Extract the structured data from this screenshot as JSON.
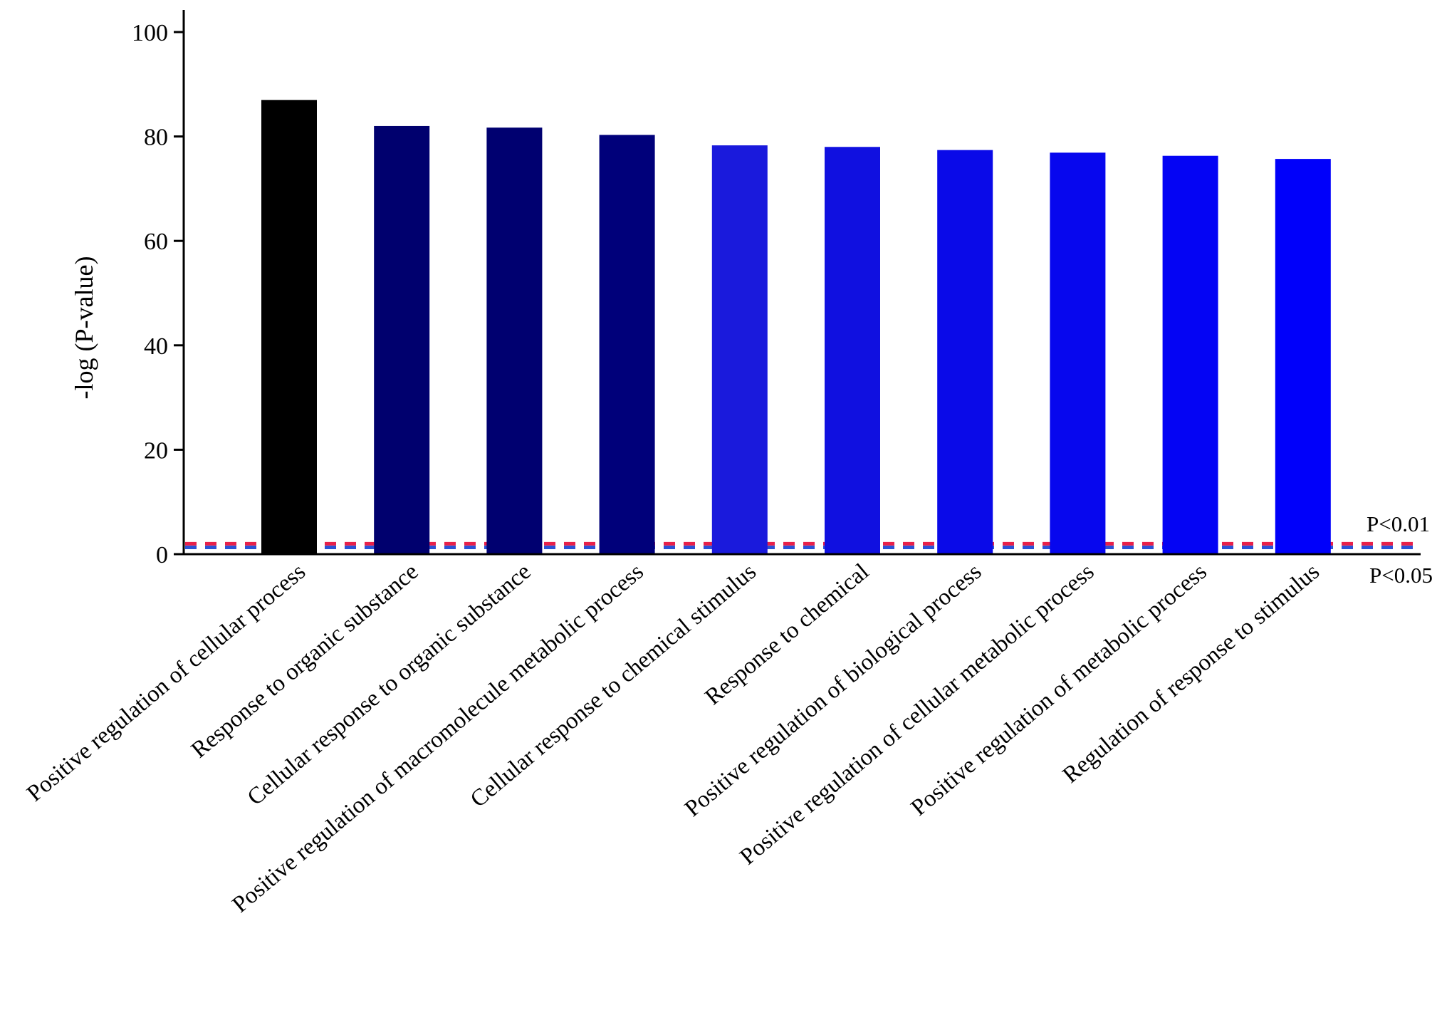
{
  "chart_data": {
    "type": "bar",
    "title": "",
    "xlabel": "",
    "ylabel": "-log (P-value)",
    "ylim": [
      0,
      100
    ],
    "yticks": [
      0,
      20,
      40,
      60,
      80,
      100
    ],
    "grid": false,
    "categories": [
      "Positive regulation of cellular process",
      "Response to organic substance",
      "Cellular response to organic substance",
      "Positive regulation of macromolecule metabolic  process",
      "Cellular response to chemical stimulus",
      "Response to chemical",
      "Positive regulation of biological process",
      "Positive regulation of cellular metabolic  process",
      "Positive regulation of metabolic process",
      "Regulation of response to stimulus"
    ],
    "values": [
      87,
      82,
      81.7,
      80.3,
      78.3,
      78,
      77.4,
      76.9,
      76.3,
      75.7
    ],
    "bar_colors": [
      "#000000",
      "#00006e",
      "#000070",
      "#00007a",
      "#1a1adc",
      "#1010e0",
      "#0a0ae8",
      "#0707ee",
      "#0404f4",
      "#0000fa"
    ],
    "thresholds": [
      {
        "label": "P<0.01",
        "value": 2,
        "color": "#e8204a"
      },
      {
        "label": "P<0.05",
        "value": 1.3,
        "color": "#2b52d6"
      }
    ]
  }
}
